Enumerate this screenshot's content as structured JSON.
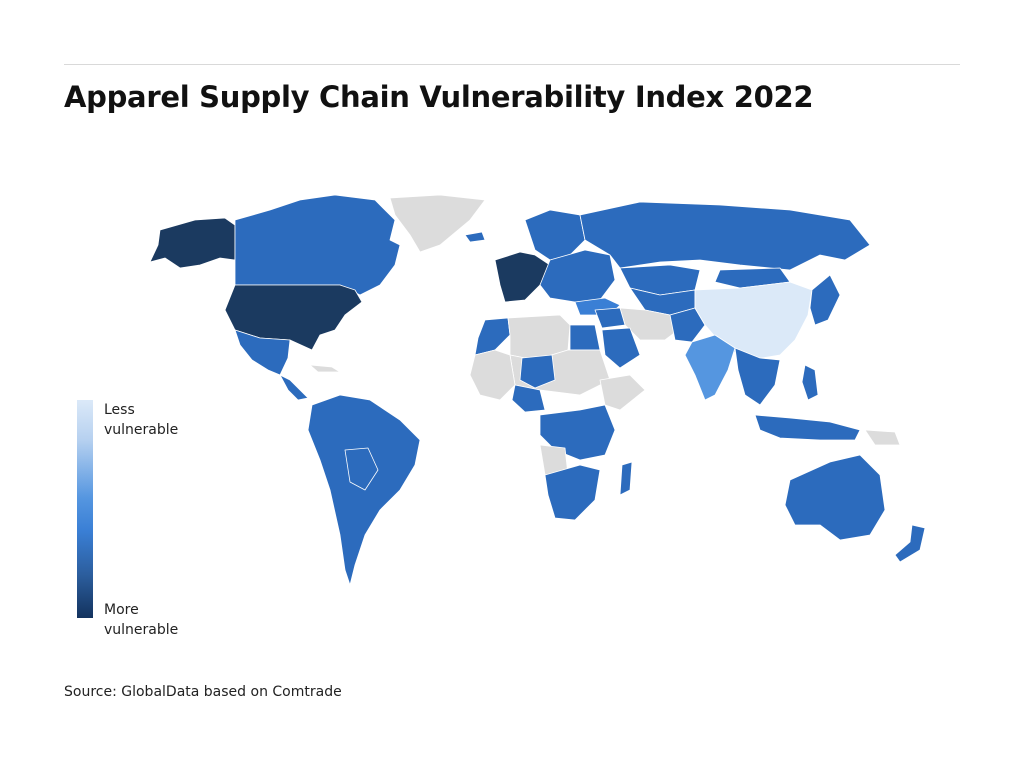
{
  "title": "Apparel Supply Chain Vulnerability Index 2022",
  "legend": {
    "top_label_line1": "Less",
    "top_label_line2": "vulnerable",
    "bottom_label_line1": "More",
    "bottom_label_line2": "vulnerable"
  },
  "source": "Source: GlobalData based on Comtrade",
  "colors": {
    "least": "#dbe9f8",
    "light": "#5596e0",
    "medium": "#3a7fd5",
    "dark": "#2c6bbd",
    "most": "#1b3a60",
    "no_data": "#dcdcdc",
    "border": "#ffffff"
  },
  "regions": [
    {
      "name": "United States",
      "level": "most"
    },
    {
      "name": "Alaska",
      "level": "most"
    },
    {
      "name": "Canada",
      "level": "dark"
    },
    {
      "name": "Greenland",
      "level": "no_data"
    },
    {
      "name": "Mexico",
      "level": "dark"
    },
    {
      "name": "Central America",
      "level": "dark"
    },
    {
      "name": "Cuba",
      "level": "no_data"
    },
    {
      "name": "South America",
      "level": "dark"
    },
    {
      "name": "Bolivia & Paraguay",
      "level": "dark"
    },
    {
      "name": "Iceland",
      "level": "dark"
    },
    {
      "name": "Western Europe",
      "level": "most"
    },
    {
      "name": "Scandinavia",
      "level": "dark"
    },
    {
      "name": "Eastern Europe",
      "level": "dark"
    },
    {
      "name": "Russia",
      "level": "dark"
    },
    {
      "name": "Turkey",
      "level": "medium"
    },
    {
      "name": "Kazakhstan",
      "level": "dark"
    },
    {
      "name": "Central Asia",
      "level": "dark"
    },
    {
      "name": "Iran & Afghanistan",
      "level": "no_data"
    },
    {
      "name": "China",
      "level": "least"
    },
    {
      "name": "Mongolia",
      "level": "dark"
    },
    {
      "name": "Korea & Japan",
      "level": "dark"
    },
    {
      "name": "India",
      "level": "light"
    },
    {
      "name": "Pakistan",
      "level": "dark"
    },
    {
      "name": "Southeast Asia",
      "level": "dark"
    },
    {
      "name": "Indonesia",
      "level": "dark"
    },
    {
      "name": "Philippines",
      "level": "dark"
    },
    {
      "name": "Papua New Guinea",
      "level": "no_data"
    },
    {
      "name": "Australia",
      "level": "dark"
    },
    {
      "name": "New Zealand",
      "level": "dark"
    },
    {
      "name": "Saudi Arabia",
      "level": "dark"
    },
    {
      "name": "Middle East",
      "level": "dark"
    },
    {
      "name": "Egypt",
      "level": "dark"
    },
    {
      "name": "Morocco",
      "level": "dark"
    },
    {
      "name": "Algeria & Libya",
      "level": "no_data"
    },
    {
      "name": "Sahel",
      "level": "no_data"
    },
    {
      "name": "Niger",
      "level": "dark"
    },
    {
      "name": "Nigeria",
      "level": "dark"
    },
    {
      "name": "West Africa",
      "level": "no_data"
    },
    {
      "name": "Horn of Africa",
      "level": "no_data"
    },
    {
      "name": "Central & East Africa",
      "level": "dark"
    },
    {
      "name": "Angola",
      "level": "no_data"
    },
    {
      "name": "Southern Africa",
      "level": "dark"
    },
    {
      "name": "Madagascar",
      "level": "dark"
    }
  ]
}
